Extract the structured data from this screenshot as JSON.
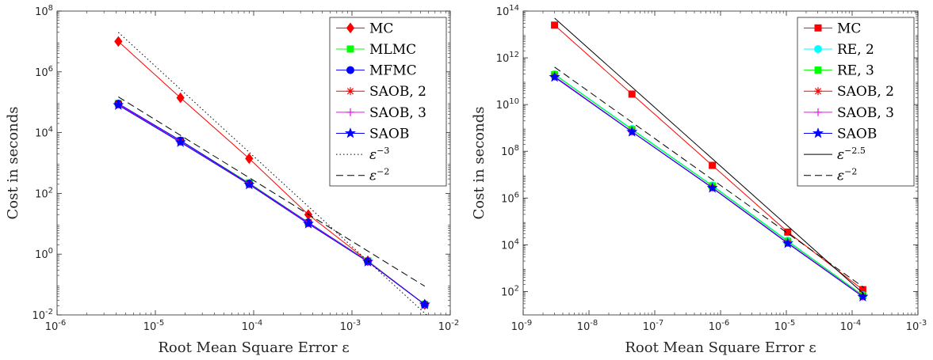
{
  "chart_data": [
    {
      "type": "line",
      "xscale": "log",
      "yscale": "log",
      "xlim": [
        1e-06,
        0.01
      ],
      "ylim": [
        0.01,
        100000000.0
      ],
      "xlabel": "Root Mean Square Error ε",
      "ylabel": "Cost in seconds",
      "xticks": [
        {
          "value": 1e-06,
          "base": "10",
          "exp": "-6"
        },
        {
          "value": 1e-05,
          "base": "10",
          "exp": "-5"
        },
        {
          "value": 0.0001,
          "base": "10",
          "exp": "-4"
        },
        {
          "value": 0.001,
          "base": "10",
          "exp": "-3"
        },
        {
          "value": 0.01,
          "base": "10",
          "exp": "-2"
        }
      ],
      "yticks": [
        {
          "value": 0.01,
          "base": "10",
          "exp": "-2"
        },
        {
          "value": 1.0,
          "base": "10",
          "exp": "0"
        },
        {
          "value": 100.0,
          "base": "10",
          "exp": "2"
        },
        {
          "value": 10000.0,
          "base": "10",
          "exp": "4"
        },
        {
          "value": 1000000.0,
          "base": "10",
          "exp": "6"
        },
        {
          "value": 100000000.0,
          "base": "10",
          "exp": "8"
        }
      ],
      "grid": false,
      "legend_position": "top-right",
      "series": [
        {
          "name": "MC",
          "color": "#ff0000",
          "marker": "diamond",
          "style": "solid",
          "x": [
            4.2e-06,
            1.8e-05,
            9e-05,
            0.00036,
            0.00145,
            0.0055
          ],
          "y": [
            10000000.0,
            140000.0,
            1400.0,
            20,
            0.6,
            0.022
          ]
        },
        {
          "name": "MLMC",
          "color": "#00ff00",
          "marker": "square",
          "style": "solid",
          "x": [
            4.2e-06,
            1.8e-05,
            9e-05,
            0.00036,
            0.00145,
            0.0055
          ],
          "y": [
            90000.0,
            5500.0,
            220,
            11,
            0.6,
            0.022
          ]
        },
        {
          "name": "MFMC",
          "color": "#0000ff",
          "marker": "circle",
          "style": "solid",
          "x": [
            4.2e-06,
            1.8e-05,
            9e-05,
            0.00036,
            0.00145,
            0.0055
          ],
          "y": [
            90000.0,
            5500.0,
            210,
            11,
            0.58,
            0.022
          ]
        },
        {
          "name": "SAOB, 2",
          "color": "#ff0000",
          "marker": "asterisk",
          "style": "solid",
          "x": [
            4.2e-06,
            1.8e-05,
            9e-05,
            0.00036,
            0.00145,
            0.0055
          ],
          "y": [
            85000.0,
            5000.0,
            200,
            10.5,
            0.58,
            0.022
          ]
        },
        {
          "name": "SAOB, 3",
          "color": "#ff00ff",
          "marker": "plus",
          "style": "solid",
          "x": [
            4.2e-06,
            1.8e-05,
            9e-05,
            0.00036,
            0.00145,
            0.0055
          ],
          "y": [
            85000.0,
            5000.0,
            200,
            10.5,
            0.58,
            0.022
          ]
        },
        {
          "name": "SAOB",
          "color": "#0000ff",
          "marker": "star",
          "style": "solid",
          "x": [
            4.2e-06,
            1.8e-05,
            9e-05,
            0.00036,
            0.00145,
            0.0055
          ],
          "y": [
            80000.0,
            4800.0,
            195,
            10,
            0.56,
            0.022
          ]
        },
        {
          "name": "ε^{-3}",
          "name_base": "ε",
          "name_exp": "−3",
          "color": "#000000",
          "marker": "none",
          "style": "dotted",
          "x": [
            4.2e-06,
            0.006
          ],
          "y": [
            20000000.0,
            0.0088
          ]
        },
        {
          "name": "ε^{-2}",
          "name_base": "ε",
          "name_exp": "−2",
          "color": "#000000",
          "marker": "none",
          "style": "dashed",
          "x": [
            4.2e-06,
            0.0055
          ],
          "y": [
            150000.0,
            0.088
          ]
        }
      ]
    },
    {
      "type": "line",
      "xscale": "log",
      "yscale": "log",
      "xlim": [
        1e-09,
        0.001
      ],
      "ylim": [
        10.0,
        100000000000000.0
      ],
      "xlabel": "Root Mean Square Error ε",
      "ylabel": "Cost in seconds",
      "xticks": [
        {
          "value": 1e-09,
          "base": "10",
          "exp": "-9"
        },
        {
          "value": 1e-08,
          "base": "10",
          "exp": "-8"
        },
        {
          "value": 1e-07,
          "base": "10",
          "exp": "-7"
        },
        {
          "value": 1e-06,
          "base": "10",
          "exp": "-6"
        },
        {
          "value": 1e-05,
          "base": "10",
          "exp": "-5"
        },
        {
          "value": 0.0001,
          "base": "10",
          "exp": "-4"
        },
        {
          "value": 0.001,
          "base": "10",
          "exp": "-3"
        }
      ],
      "yticks": [
        {
          "value": 100.0,
          "base": "10",
          "exp": "2"
        },
        {
          "value": 10000.0,
          "base": "10",
          "exp": "4"
        },
        {
          "value": 1000000.0,
          "base": "10",
          "exp": "6"
        },
        {
          "value": 100000000.0,
          "base": "10",
          "exp": "8"
        },
        {
          "value": 10000000000.0,
          "base": "10",
          "exp": "10"
        },
        {
          "value": 1000000000000.0,
          "base": "10",
          "exp": "12"
        },
        {
          "value": 100000000000000.0,
          "base": "10",
          "exp": "14"
        }
      ],
      "grid": false,
      "legend_position": "top-right",
      "series": [
        {
          "name": "MC",
          "color": "#ff0000",
          "marker": "square",
          "style": "solid",
          "x": [
            3e-09,
            4.5e-08,
            7.5e-07,
            1.05e-05,
            0.000145
          ],
          "y": [
            25000000000000.0,
            28000000000.0,
            25000000.0,
            35000.0,
            120
          ]
        },
        {
          "name": "RE, 2",
          "color": "#00ffff",
          "marker": "circle",
          "style": "solid",
          "x": [
            3e-09,
            4.5e-08,
            7.5e-07,
            1.05e-05,
            0.000145
          ],
          "y": [
            200000000000.0,
            900000000.0,
            3500000.0,
            15000.0,
            70
          ]
        },
        {
          "name": "RE, 3",
          "color": "#00ff00",
          "marker": "square",
          "style": "solid",
          "x": [
            3e-09,
            4.5e-08,
            7.5e-07,
            1.05e-05,
            0.000145
          ],
          "y": [
            190000000000.0,
            850000000.0,
            3300000.0,
            14000.0,
            68
          ]
        },
        {
          "name": "SAOB, 2",
          "color": "#ff0000",
          "marker": "asterisk",
          "style": "solid",
          "x": [
            3e-09,
            4.5e-08,
            7.5e-07,
            1.05e-05,
            0.000145
          ],
          "y": [
            160000000000.0,
            700000000.0,
            2800000.0,
            12000.0,
            62
          ]
        },
        {
          "name": "SAOB, 3",
          "color": "#ff00ff",
          "marker": "plus",
          "style": "solid",
          "x": [
            3e-09,
            4.5e-08,
            7.5e-07,
            1.05e-05,
            0.000145
          ],
          "y": [
            160000000000.0,
            700000000.0,
            2800000.0,
            12000.0,
            62
          ]
        },
        {
          "name": "SAOB",
          "color": "#0000ff",
          "marker": "star",
          "style": "solid",
          "x": [
            3e-09,
            4.5e-08,
            7.5e-07,
            1.05e-05,
            0.000145
          ],
          "y": [
            150000000000.0,
            680000000.0,
            2700000.0,
            11500.0,
            60
          ]
        },
        {
          "name": "ε^{-2.5}",
          "name_base": "ε",
          "name_exp": "−2.5",
          "color": "#000000",
          "marker": "none",
          "style": "solid",
          "x": [
            3e-09,
            0.00015
          ],
          "y": [
            50000000000000.0,
            80.0
          ]
        },
        {
          "name": "ε^{-2}",
          "name_base": "ε",
          "name_exp": "−2",
          "color": "#000000",
          "marker": "none",
          "style": "dashed",
          "x": [
            3e-09,
            0.00015
          ],
          "y": [
            400000000000.0,
            150.0
          ]
        }
      ]
    }
  ]
}
